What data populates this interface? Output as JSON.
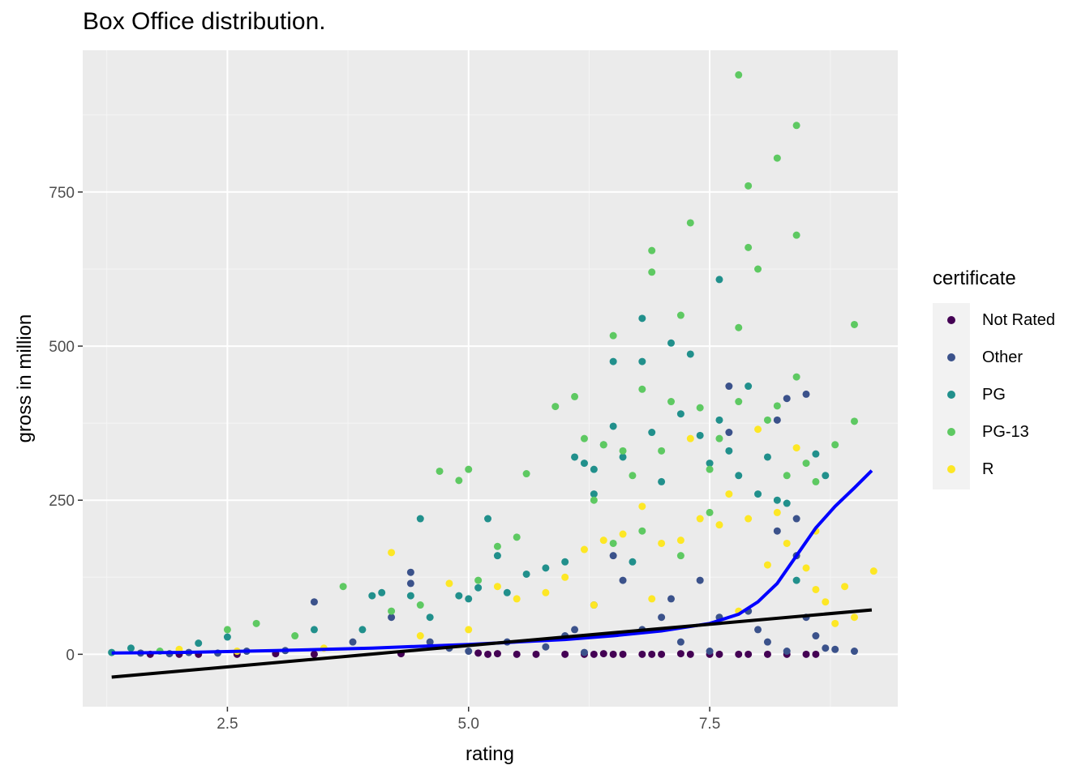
{
  "chart_data": {
    "type": "scatter",
    "title": "Box Office distribution.",
    "xlabel": "rating",
    "ylabel": "gross in million",
    "xlim": [
      1.0,
      9.45
    ],
    "ylim": [
      -85,
      980
    ],
    "x_ticks": [
      2.5,
      5.0,
      7.5
    ],
    "x_tick_labels": [
      "2.5",
      "5.0",
      "7.5"
    ],
    "y_ticks": [
      0,
      250,
      500,
      750
    ],
    "y_tick_labels": [
      "0",
      "250",
      "500",
      "750"
    ],
    "grid": true,
    "legend_title": "certificate",
    "legend_position": "right",
    "series": [
      {
        "name": "Not Rated",
        "color": "#440154",
        "points": [
          [
            1.7,
            0
          ],
          [
            2.0,
            0
          ],
          [
            2.2,
            0
          ],
          [
            2.6,
            0
          ],
          [
            3.0,
            1
          ],
          [
            3.4,
            0
          ],
          [
            4.3,
            1
          ],
          [
            5.1,
            2
          ],
          [
            5.2,
            0
          ],
          [
            5.3,
            1
          ],
          [
            5.5,
            0
          ],
          [
            5.7,
            0
          ],
          [
            6.0,
            0
          ],
          [
            6.2,
            0
          ],
          [
            6.3,
            0
          ],
          [
            6.4,
            1
          ],
          [
            6.5,
            0
          ],
          [
            6.6,
            0
          ],
          [
            6.8,
            0
          ],
          [
            6.9,
            0
          ],
          [
            7.0,
            0
          ],
          [
            7.2,
            1
          ],
          [
            7.3,
            0
          ],
          [
            7.5,
            0
          ],
          [
            7.6,
            0
          ],
          [
            7.8,
            0
          ],
          [
            7.9,
            0
          ],
          [
            8.1,
            0
          ],
          [
            8.3,
            0
          ],
          [
            8.5,
            0
          ],
          [
            8.6,
            0
          ]
        ]
      },
      {
        "name": "Other",
        "color": "#3b528b",
        "points": [
          [
            1.6,
            2
          ],
          [
            1.9,
            1
          ],
          [
            2.1,
            3
          ],
          [
            2.4,
            2
          ],
          [
            2.7,
            5
          ],
          [
            3.1,
            6
          ],
          [
            3.4,
            85
          ],
          [
            3.8,
            20
          ],
          [
            4.2,
            60
          ],
          [
            4.4,
            133
          ],
          [
            4.4,
            115
          ],
          [
            4.6,
            20
          ],
          [
            4.8,
            10
          ],
          [
            5.0,
            5
          ],
          [
            5.4,
            20
          ],
          [
            5.8,
            12
          ],
          [
            6.0,
            30
          ],
          [
            6.1,
            40
          ],
          [
            6.3,
            80
          ],
          [
            6.5,
            160
          ],
          [
            6.6,
            120
          ],
          [
            6.8,
            40
          ],
          [
            7.0,
            60
          ],
          [
            7.1,
            90
          ],
          [
            7.2,
            20
          ],
          [
            7.4,
            120
          ],
          [
            7.6,
            60
          ],
          [
            7.7,
            435
          ],
          [
            7.7,
            360
          ],
          [
            7.9,
            70
          ],
          [
            8.0,
            40
          ],
          [
            8.1,
            20
          ],
          [
            8.2,
            200
          ],
          [
            8.2,
            380
          ],
          [
            8.3,
            415
          ],
          [
            8.4,
            160
          ],
          [
            8.4,
            220
          ],
          [
            8.5,
            422
          ],
          [
            8.5,
            60
          ],
          [
            8.6,
            30
          ],
          [
            8.7,
            10
          ],
          [
            8.8,
            8
          ],
          [
            9.0,
            5
          ],
          [
            8.3,
            5
          ],
          [
            7.5,
            5
          ],
          [
            6.2,
            3
          ]
        ]
      },
      {
        "name": "PG",
        "color": "#21908c",
        "points": [
          [
            1.3,
            3
          ],
          [
            1.5,
            10
          ],
          [
            2.2,
            18
          ],
          [
            2.5,
            28
          ],
          [
            3.4,
            40
          ],
          [
            3.9,
            40
          ],
          [
            4.0,
            95
          ],
          [
            4.1,
            100
          ],
          [
            4.4,
            95
          ],
          [
            4.5,
            220
          ],
          [
            4.6,
            60
          ],
          [
            4.9,
            95
          ],
          [
            5.0,
            90
          ],
          [
            5.1,
            108
          ],
          [
            5.2,
            220
          ],
          [
            5.3,
            160
          ],
          [
            5.4,
            100
          ],
          [
            5.6,
            130
          ],
          [
            5.8,
            140
          ],
          [
            6.0,
            150
          ],
          [
            6.1,
            320
          ],
          [
            6.2,
            310
          ],
          [
            6.3,
            260
          ],
          [
            6.3,
            300
          ],
          [
            6.4,
            340
          ],
          [
            6.5,
            370
          ],
          [
            6.5,
            475
          ],
          [
            6.6,
            320
          ],
          [
            6.7,
            150
          ],
          [
            6.8,
            545
          ],
          [
            6.8,
            475
          ],
          [
            6.9,
            360
          ],
          [
            7.0,
            280
          ],
          [
            7.1,
            505
          ],
          [
            7.2,
            390
          ],
          [
            7.3,
            487
          ],
          [
            7.4,
            355
          ],
          [
            7.5,
            310
          ],
          [
            7.6,
            608
          ],
          [
            7.6,
            380
          ],
          [
            7.7,
            330
          ],
          [
            7.8,
            290
          ],
          [
            7.9,
            435
          ],
          [
            8.0,
            260
          ],
          [
            8.1,
            320
          ],
          [
            8.2,
            250
          ],
          [
            8.3,
            245
          ],
          [
            8.4,
            120
          ],
          [
            8.6,
            325
          ],
          [
            8.7,
            290
          ]
        ]
      },
      {
        "name": "PG-13",
        "color": "#5ec962",
        "points": [
          [
            1.8,
            5
          ],
          [
            2.5,
            40
          ],
          [
            2.8,
            50
          ],
          [
            3.2,
            30
          ],
          [
            3.7,
            110
          ],
          [
            4.2,
            70
          ],
          [
            4.5,
            80
          ],
          [
            4.7,
            297
          ],
          [
            4.9,
            282
          ],
          [
            5.0,
            300
          ],
          [
            5.1,
            120
          ],
          [
            5.3,
            175
          ],
          [
            5.5,
            190
          ],
          [
            5.6,
            293
          ],
          [
            5.9,
            402
          ],
          [
            6.1,
            418
          ],
          [
            6.2,
            350
          ],
          [
            6.3,
            250
          ],
          [
            6.4,
            340
          ],
          [
            6.5,
            517
          ],
          [
            6.6,
            330
          ],
          [
            6.7,
            290
          ],
          [
            6.8,
            430
          ],
          [
            6.9,
            655
          ],
          [
            6.9,
            620
          ],
          [
            7.0,
            330
          ],
          [
            7.1,
            410
          ],
          [
            7.2,
            550
          ],
          [
            7.3,
            700
          ],
          [
            7.4,
            400
          ],
          [
            7.5,
            300
          ],
          [
            7.6,
            350
          ],
          [
            7.8,
            940
          ],
          [
            7.8,
            530
          ],
          [
            7.8,
            410
          ],
          [
            7.9,
            760
          ],
          [
            7.9,
            660
          ],
          [
            8.0,
            625
          ],
          [
            8.1,
            380
          ],
          [
            8.2,
            805
          ],
          [
            8.2,
            403
          ],
          [
            8.3,
            290
          ],
          [
            8.4,
            858
          ],
          [
            8.4,
            680
          ],
          [
            8.4,
            450
          ],
          [
            8.5,
            310
          ],
          [
            8.6,
            280
          ],
          [
            8.8,
            340
          ],
          [
            9.0,
            535
          ],
          [
            9.0,
            378
          ],
          [
            7.2,
            160
          ],
          [
            6.8,
            200
          ],
          [
            6.5,
            180
          ],
          [
            7.5,
            230
          ]
        ]
      },
      {
        "name": "R",
        "color": "#fde725",
        "points": [
          [
            2.0,
            8
          ],
          [
            2.6,
            5
          ],
          [
            3.5,
            10
          ],
          [
            4.2,
            165
          ],
          [
            4.5,
            30
          ],
          [
            4.8,
            115
          ],
          [
            5.0,
            40
          ],
          [
            5.3,
            110
          ],
          [
            5.5,
            90
          ],
          [
            5.8,
            100
          ],
          [
            6.0,
            125
          ],
          [
            6.2,
            170
          ],
          [
            6.4,
            185
          ],
          [
            6.6,
            195
          ],
          [
            6.8,
            240
          ],
          [
            7.0,
            180
          ],
          [
            7.2,
            185
          ],
          [
            7.3,
            350
          ],
          [
            7.4,
            220
          ],
          [
            7.6,
            210
          ],
          [
            7.7,
            260
          ],
          [
            7.9,
            220
          ],
          [
            8.0,
            365
          ],
          [
            8.2,
            230
          ],
          [
            8.3,
            180
          ],
          [
            8.4,
            335
          ],
          [
            8.5,
            140
          ],
          [
            8.6,
            200
          ],
          [
            8.7,
            85
          ],
          [
            8.8,
            50
          ],
          [
            8.9,
            110
          ],
          [
            9.0,
            60
          ],
          [
            9.2,
            135
          ],
          [
            8.6,
            105
          ],
          [
            8.1,
            145
          ],
          [
            7.8,
            70
          ],
          [
            6.9,
            90
          ],
          [
            6.3,
            80
          ]
        ]
      }
    ],
    "trend_lines": [
      {
        "color": "#0000ff",
        "points": [
          [
            1.3,
            2
          ],
          [
            2.0,
            3
          ],
          [
            3.0,
            6
          ],
          [
            4.0,
            10
          ],
          [
            5.0,
            16
          ],
          [
            6.0,
            24
          ],
          [
            6.5,
            30
          ],
          [
            7.0,
            38
          ],
          [
            7.5,
            50
          ],
          [
            7.8,
            65
          ],
          [
            8.0,
            85
          ],
          [
            8.2,
            115
          ],
          [
            8.4,
            160
          ],
          [
            8.6,
            205
          ],
          [
            8.8,
            240
          ],
          [
            9.0,
            270
          ],
          [
            9.18,
            298
          ]
        ]
      },
      {
        "color": "#000000",
        "points": [
          [
            1.3,
            -37
          ],
          [
            9.18,
            72
          ]
        ]
      }
    ]
  }
}
